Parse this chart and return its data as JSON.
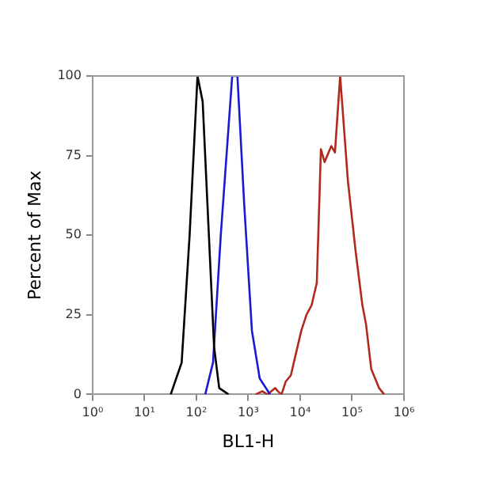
{
  "chart_data": {
    "type": "line",
    "xlabel": "BL1-H",
    "ylabel": "Percent of Max",
    "log": "x",
    "grid": false,
    "legend": false,
    "marker": "none",
    "line_style": "solid",
    "xlim": [
      1,
      1000000
    ],
    "xticks": [
      {
        "value": 1,
        "label": "10⁰"
      },
      {
        "value": 10,
        "label": "10¹"
      },
      {
        "value": 100,
        "label": "10²"
      },
      {
        "value": 1000,
        "label": "10³"
      },
      {
        "value": 10000,
        "label": "10⁴"
      },
      {
        "value": 100000,
        "label": "10⁵"
      },
      {
        "value": 1000000,
        "label": "10⁶"
      }
    ],
    "ylim": [
      0,
      100
    ],
    "yticks": [
      0,
      25,
      50,
      75,
      100
    ],
    "series": [
      {
        "color": "#000000",
        "x": [
          32,
          52,
          74,
          105,
          132,
          174,
          219,
          275,
          417
        ],
        "values": [
          0,
          10,
          50,
          100,
          92,
          50,
          15,
          2,
          0
        ]
      },
      {
        "color": "#1a1ad0",
        "x": [
          148,
          209,
          295,
          490,
          617,
          832,
          1175,
          1660,
          2630
        ],
        "values": [
          0,
          10,
          50,
          100,
          100,
          60,
          20,
          5,
          0
        ]
      },
      {
        "color": "#b02a1e",
        "x": [
          1380,
          1860,
          2340,
          3310,
          3720,
          4370,
          5250,
          6610,
          8320,
          10500,
          13200,
          16600,
          20900,
          25100,
          29500,
          39800,
          46800,
          58900,
          83200,
          117000,
          158000,
          186000,
          234000,
          331000,
          417000
        ],
        "values": [
          0,
          1,
          0,
          2,
          1,
          0,
          4,
          6,
          13,
          20,
          25,
          28,
          35,
          77,
          73,
          78,
          76,
          100,
          67,
          45,
          28,
          22,
          8,
          2,
          0
        ]
      }
    ]
  }
}
